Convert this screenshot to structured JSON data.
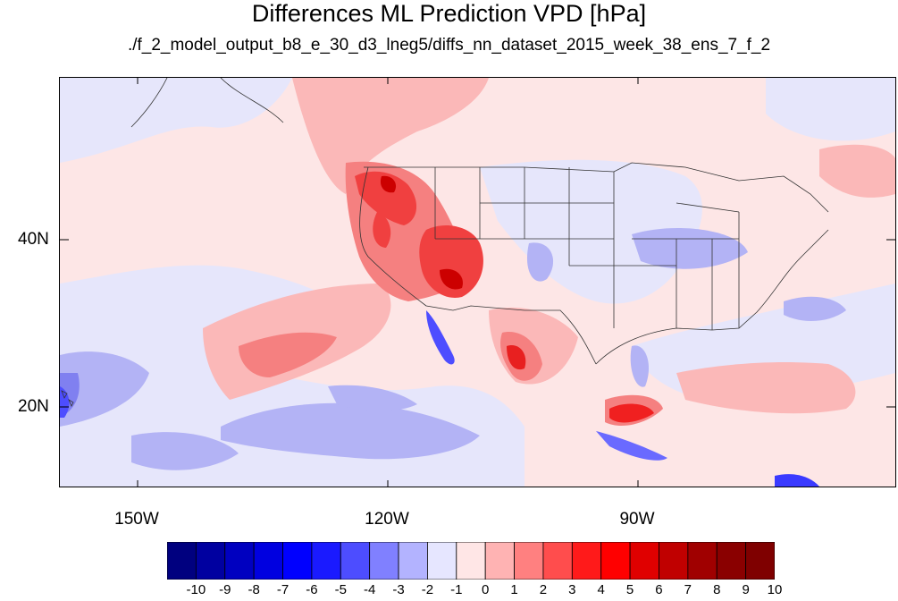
{
  "title": "Differences ML Prediction VPD [hPa]",
  "subtitle": "./f_2_model_output_b8_e_30_d3_lneg5/diffs_nn_dataset_2015_week_38_ens_7_f_2",
  "lat_labels": [
    "40N",
    "20N"
  ],
  "lon_labels": [
    "150W",
    "120W",
    "90W"
  ],
  "colorbar": {
    "labels": [
      "-10",
      "-9",
      "-8",
      "-7",
      "-6",
      "-5",
      "-4",
      "-3",
      "-2",
      "-1",
      "0",
      "1",
      "2",
      "3",
      "4",
      "5",
      "6",
      "7",
      "8",
      "9",
      "10"
    ],
    "colors": [
      "#00007f",
      "#0000a0",
      "#0000c0",
      "#0000e0",
      "#0000ff",
      "#1a1aff",
      "#4d4dff",
      "#8080ff",
      "#b3b3ff",
      "#e6e6ff",
      "#ffe6e6",
      "#ffb3b3",
      "#ff8080",
      "#ff4d4d",
      "#ff1a1a",
      "#ff0000",
      "#e00000",
      "#c00000",
      "#a00000",
      "#8a0000",
      "#7f0000"
    ]
  }
}
